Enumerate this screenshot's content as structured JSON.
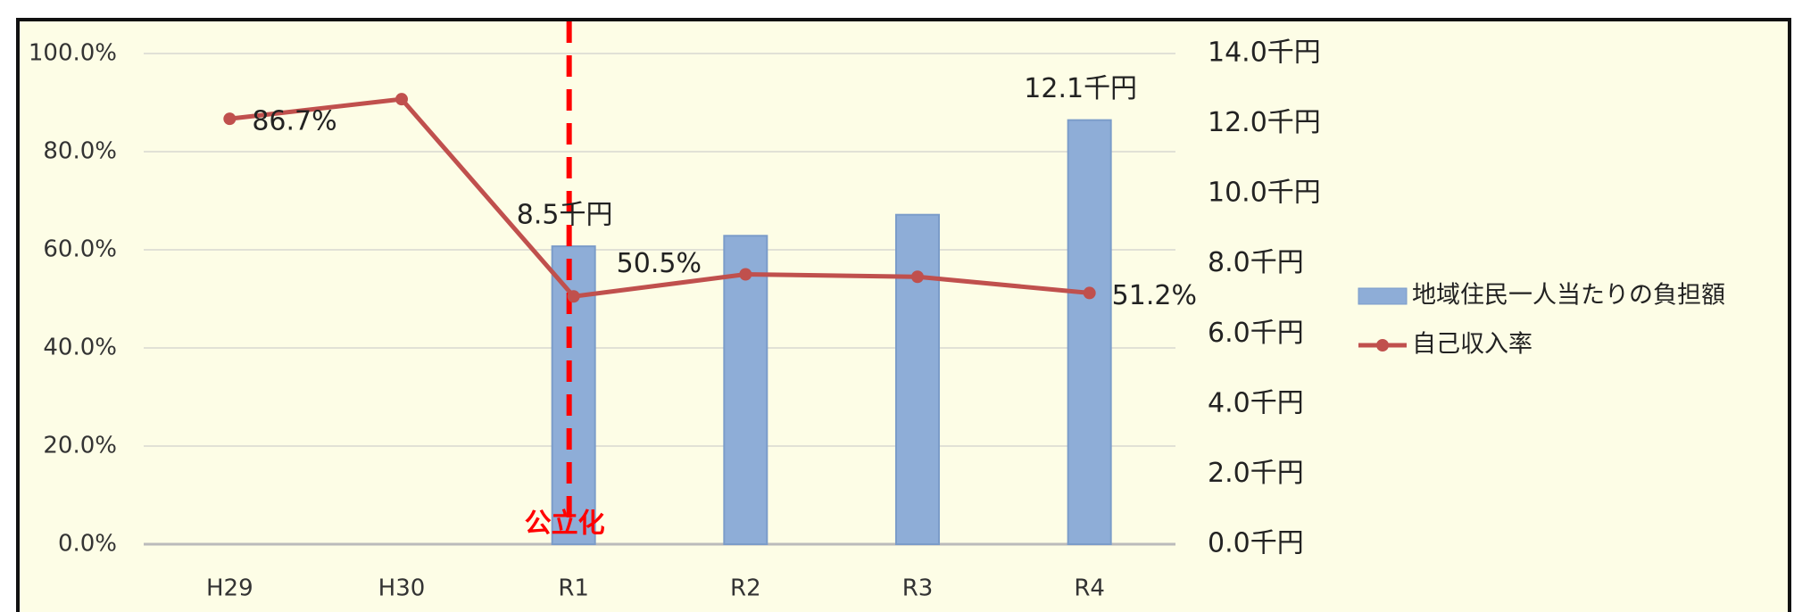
{
  "chart_data": {
    "type": "bar_line",
    "categories": [
      "H29",
      "H30",
      "R1",
      "R2",
      "R3",
      "R4"
    ],
    "series": [
      {
        "name": "地域住民一人当たりの負担額",
        "type": "bar",
        "axis": "y2",
        "color": "#8eadd7",
        "values": [
          null,
          null,
          8.5,
          8.8,
          9.4,
          12.1
        ],
        "value_labels": [
          null,
          null,
          "8.5千円",
          null,
          null,
          "12.1千円"
        ]
      },
      {
        "name": "自己収入率",
        "type": "line",
        "color": "#c0504d",
        "values": [
          86.7,
          90.7,
          50.5,
          55.0,
          54.5,
          51.2
        ],
        "value_labels": [
          "86.7%",
          null,
          "50.5%",
          null,
          null,
          "51.2%"
        ]
      }
    ],
    "ylim": [
      0,
      100
    ],
    "yticks": [
      {
        "value": 0,
        "label": "0.0%"
      },
      {
        "value": 20,
        "label": "20.0%"
      },
      {
        "value": 40,
        "label": "40.0%"
      },
      {
        "value": 60,
        "label": "60.0%"
      },
      {
        "value": 80,
        "label": "80.0%"
      },
      {
        "value": 100,
        "label": "100.0%"
      }
    ],
    "y2lim": [
      0,
      14
    ],
    "y2ticks": [
      {
        "value": 0,
        "label": "0.0千円"
      },
      {
        "value": 2,
        "label": "2.0千円"
      },
      {
        "value": 4,
        "label": "4.0千円"
      },
      {
        "value": 6,
        "label": "6.0千円"
      },
      {
        "value": 8,
        "label": "8.0千円"
      },
      {
        "value": 10,
        "label": "10.0千円"
      },
      {
        "value": 12,
        "label": "12.0千円"
      },
      {
        "value": 14,
        "label": "14.0千円"
      }
    ],
    "grid": true,
    "legend": "right",
    "annotation": "公立化",
    "annotation_category": "R1",
    "annotation_color": "#ff0000"
  }
}
